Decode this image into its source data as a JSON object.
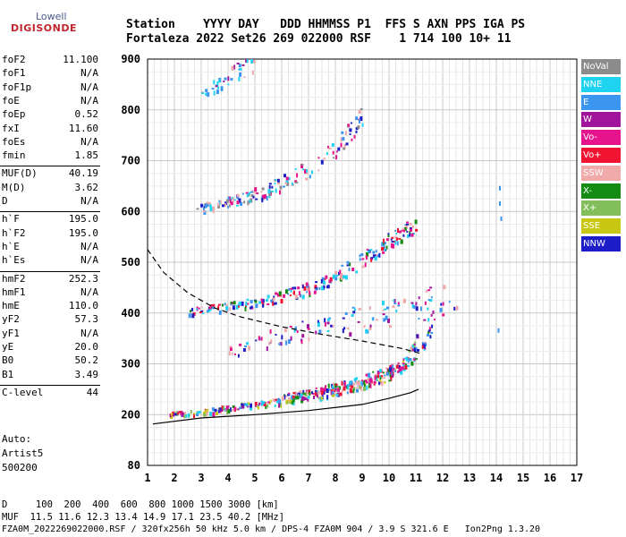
{
  "logo": {
    "top": "Lowell",
    "bottom": "DIGISONDE"
  },
  "header": {
    "labels": "Station    YYYY DAY   DDD HHMMSS P1  FFS S AXN PPS IGA PS",
    "values": "Fortaleza 2022 Set26 269 022000 RSF    1 714 100 10+ 11"
  },
  "params": [
    {
      "name": "foF2",
      "value": "11.100"
    },
    {
      "name": "foF1",
      "value": "N/A"
    },
    {
      "name": "foF1p",
      "value": "N/A"
    },
    {
      "name": "foE",
      "value": "N/A"
    },
    {
      "name": "foEp",
      "value": "0.52"
    },
    {
      "name": "fxI",
      "value": "11.60"
    },
    {
      "name": "foEs",
      "value": "N/A"
    },
    {
      "name": "fmin",
      "value": "1.85"
    },
    {
      "name": "MUF(D)",
      "value": "40.19"
    },
    {
      "name": "M(D)",
      "value": "3.62"
    },
    {
      "name": "D",
      "value": "N/A"
    },
    {
      "name": "h`F",
      "value": "195.0"
    },
    {
      "name": "h`F2",
      "value": "195.0"
    },
    {
      "name": "h`E",
      "value": "N/A"
    },
    {
      "name": "h`Es",
      "value": "N/A"
    },
    {
      "name": "hmF2",
      "value": "252.3"
    },
    {
      "name": "hmF1",
      "value": "N/A"
    },
    {
      "name": "hmE",
      "value": "110.0"
    },
    {
      "name": "yF2",
      "value": "57.3"
    },
    {
      "name": "yF1",
      "value": "N/A"
    },
    {
      "name": "yE",
      "value": "20.0"
    },
    {
      "name": "B0",
      "value": "50.2"
    },
    {
      "name": "B1",
      "value": "3.49"
    },
    {
      "name": "C-level",
      "value": "44"
    }
  ],
  "auto": {
    "line1": "Auto:",
    "line2": "Artist5",
    "line3": "500200"
  },
  "legend": [
    {
      "label": "NoVal",
      "color": "#8c8c8c"
    },
    {
      "label": "NNE",
      "color": "#1ed2f0"
    },
    {
      "label": "E",
      "color": "#3c96f0"
    },
    {
      "label": "W",
      "color": "#a0149b"
    },
    {
      "label": "Vo-",
      "color": "#e6148c"
    },
    {
      "label": "Vo+",
      "color": "#f01432"
    },
    {
      "label": "SSW",
      "color": "#f0aaaa"
    },
    {
      "label": "X-",
      "color": "#148c14"
    },
    {
      "label": "X+",
      "color": "#82be5a"
    },
    {
      "label": "SSE",
      "color": "#c8c814"
    },
    {
      "label": "NNW",
      "color": "#1e1ec8"
    }
  ],
  "footer": {
    "d_line": "D     100  200  400  600  800 1000 1500 3000 [km]",
    "muf_line": "MUF  11.5 11.6 12.3 13.4 14.9 17.1 23.5 40.2 [MHz]",
    "file_line": "FZA0M_2022269022000.RSF / 320fx256h 50 kHz 5.0 km / DPS-4 FZA0M 904 / 3.9 S 321.6 E   Ion2Png 1.3.20"
  },
  "chart_data": {
    "type": "scatter",
    "x_ticks": [
      "1",
      "2",
      "3",
      "4",
      "5",
      "6",
      "7",
      "8",
      "9",
      "10",
      "11",
      "12",
      "13",
      "14",
      "15",
      "16",
      "17"
    ],
    "y_ticks": [
      "80",
      "200",
      "300",
      "400",
      "500",
      "600",
      "700",
      "800",
      "900"
    ],
    "xlim": [
      1,
      17
    ],
    "y_breakpoints": [
      80,
      200,
      300,
      400,
      500,
      600,
      700,
      800,
      900
    ],
    "grid": true,
    "legend_position": "right",
    "traces": [
      {
        "name": "o-trace (first hop)",
        "freq": [
          1.8,
          3,
          4,
          5,
          6,
          7,
          8,
          9,
          10,
          10.6,
          11.0,
          11.1
        ],
        "height": [
          200,
          205,
          212,
          218,
          225,
          235,
          245,
          258,
          275,
          300,
          340,
          390
        ]
      },
      {
        "name": "x-trace (first hop)",
        "freq": [
          6,
          7,
          8,
          9,
          10,
          10.8,
          11.3,
          11.6
        ],
        "height": [
          235,
          245,
          255,
          268,
          285,
          305,
          335,
          375
        ]
      },
      {
        "name": "second hop",
        "freq": [
          2.5,
          3,
          4,
          5,
          6,
          7,
          8,
          9,
          10,
          11
        ],
        "height": [
          400,
          405,
          410,
          418,
          430,
          445,
          470,
          500,
          540,
          570
        ]
      },
      {
        "name": "third hop",
        "freq": [
          2.8,
          3,
          4,
          5,
          6,
          7,
          8,
          9
        ],
        "height": [
          600,
          605,
          615,
          630,
          650,
          680,
          720,
          780
        ]
      },
      {
        "name": "fourth hop",
        "freq": [
          3,
          4,
          5
        ],
        "height": [
          830,
          860,
          890
        ]
      },
      {
        "name": "sporadic scatter",
        "freq": [
          4,
          5,
          6,
          7,
          8,
          9,
          10,
          11,
          12,
          12.5
        ],
        "height": [
          320,
          340,
          350,
          360,
          370,
          380,
          390,
          400,
          410,
          400
        ]
      }
    ],
    "profile_solid": {
      "freq": [
        1.2,
        3,
        5,
        7,
        9,
        10,
        10.8,
        11.1
      ],
      "height": [
        178,
        192,
        200,
        208,
        220,
        232,
        243,
        250
      ]
    },
    "muf_dashed": {
      "freq": [
        1.0,
        1.6,
        2.5,
        3.5,
        4.5,
        6,
        7.5,
        9,
        10.5,
        11.2
      ],
      "height": [
        525,
        480,
        440,
        410,
        392,
        373,
        358,
        345,
        330,
        320
      ]
    }
  }
}
